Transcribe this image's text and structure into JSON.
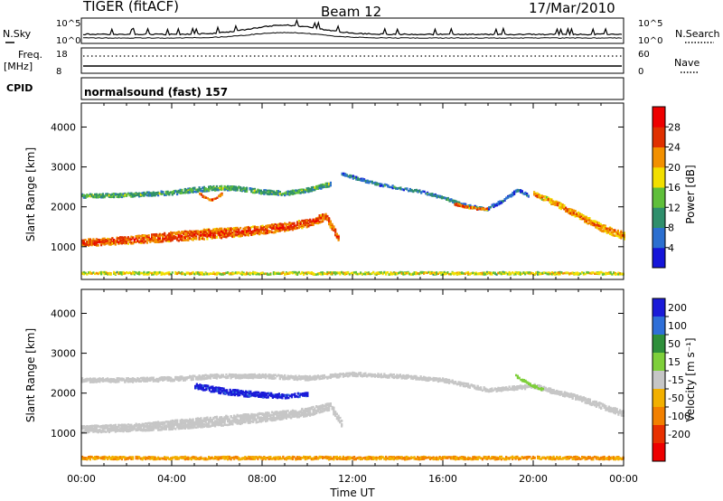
{
  "header": {
    "station": "TIGER (fitACF)",
    "beam": "Beam 12",
    "date": "17/Mar/2010"
  },
  "strip_nsky": {
    "left_label": "N.Sky",
    "right_label": "N.Search",
    "ticks_left": [
      "10^5",
      "10^0"
    ],
    "ticks_right": [
      "10^5",
      "10^0"
    ]
  },
  "strip_freq": {
    "left_label_1": "Freq.",
    "left_label_2": "[MHz]",
    "right_label": "Nave",
    "ticks_left": [
      "18",
      "8"
    ],
    "ticks_right": [
      "60",
      "0"
    ]
  },
  "strip_cpid": {
    "left_label": "CPID",
    "text": "normalsound (fast) 157"
  },
  "chart_data": [
    {
      "type": "heatmap",
      "title": "",
      "xlabel": "Time UT",
      "ylabel": "Slant Range [km]",
      "xlim": [
        "00:00",
        "24:00"
      ],
      "ylim": [
        180,
        4600
      ],
      "x_ticks": [
        "00:00",
        "04:00",
        "08:00",
        "12:00",
        "16:00",
        "20:00",
        "00:00"
      ],
      "y_ticks": [
        1000,
        2000,
        3000,
        4000
      ],
      "colorbar": {
        "label": "Power [dB]",
        "range": [
          0,
          32
        ],
        "ticks": [
          4,
          8,
          12,
          16,
          20,
          24,
          28
        ],
        "colors": [
          "#1515d9",
          "#2b6fd0",
          "#2f8f6c",
          "#5fbf3a",
          "#f2df00",
          "#f29000",
          "#e03000",
          "#ee0000"
        ]
      },
      "bands": [
        {
          "name": "",
          "t": [
            0,
            1,
            2,
            3,
            4,
            5,
            6,
            7,
            8,
            9,
            10,
            10.8,
            11.4
          ],
          "r": [
            1120,
            1150,
            1190,
            1230,
            1280,
            1320,
            1360,
            1400,
            1450,
            1520,
            1620,
            1780,
            1200
          ],
          "w": [
            170,
            170,
            180,
            200,
            230,
            240,
            240,
            220,
            200,
            200,
            190,
            180,
            160
          ],
          "level": 27
        },
        {
          "name": "",
          "t": [
            0,
            2,
            4,
            5,
            6,
            7,
            8,
            9,
            10,
            11
          ],
          "r": [
            2300,
            2320,
            2380,
            2450,
            2500,
            2480,
            2400,
            2360,
            2450,
            2600
          ],
          "w": [
            90,
            90,
            100,
            110,
            110,
            100,
            100,
            100,
            100,
            100
          ],
          "level": 14
        },
        {
          "name": "",
          "t": [
            5.2,
            5.5,
            5.8,
            6.2
          ],
          "r": [
            2350,
            2250,
            2200,
            2350
          ],
          "w": [
            60,
            60,
            60,
            60
          ],
          "level": 26
        },
        {
          "name": "",
          "t": [
            11.5,
            13,
            14,
            15,
            16,
            17,
            18
          ],
          "r": [
            2850,
            2600,
            2500,
            2400,
            2250,
            2050,
            1950
          ],
          "w": [
            70,
            60,
            60,
            60,
            70,
            70,
            60
          ],
          "level": 10
        },
        {
          "name": "",
          "t": [
            16.5,
            17,
            17.5,
            18
          ],
          "r": [
            2100,
            2020,
            1980,
            1980
          ],
          "w": [
            50,
            50,
            50,
            50
          ],
          "level": 26
        },
        {
          "name": "",
          "t": [
            18,
            18.7,
            19.3,
            19.8
          ],
          "r": [
            2000,
            2200,
            2450,
            2300
          ],
          "w": [
            70,
            70,
            70,
            70
          ],
          "level": 8
        },
        {
          "name": "",
          "t": [
            20,
            21,
            22,
            23,
            24
          ],
          "r": [
            2350,
            2100,
            1800,
            1500,
            1300
          ],
          "w": [
            100,
            130,
            150,
            170,
            180
          ],
          "level": 24
        },
        {
          "name": "",
          "t": [
            0,
            3,
            6,
            10,
            12,
            15,
            18,
            21,
            24
          ],
          "r": [
            360,
            360,
            360,
            360,
            360,
            360,
            360,
            360,
            360
          ],
          "w": [
            60,
            60,
            60,
            60,
            60,
            60,
            60,
            60,
            60
          ],
          "level": 20
        }
      ]
    },
    {
      "type": "heatmap",
      "title": "",
      "xlabel": "Time UT",
      "ylabel": "Slant Range [km]",
      "xlim": [
        "00:00",
        "24:00"
      ],
      "ylim": [
        180,
        4600
      ],
      "x_ticks": [
        "00:00",
        "04:00",
        "08:00",
        "12:00",
        "16:00",
        "20:00",
        "00:00"
      ],
      "y_ticks": [
        1000,
        2000,
        3000,
        4000
      ],
      "colorbar": {
        "label": "Velocity [m s⁻¹]",
        "ticks": [
          200,
          100,
          50,
          15,
          -15,
          -50,
          -100,
          -200
        ],
        "colors": [
          "#1b1bd8",
          "#2f6fd8",
          "#2e8f3a",
          "#7ecf3a",
          "#c6c6c6",
          "#f2b000",
          "#f28000",
          "#e83000",
          "#ee0000"
        ]
      },
      "bands": [
        {
          "name": "",
          "t": [
            0,
            2,
            4,
            6,
            8,
            10,
            11,
            11.5
          ],
          "r": [
            1120,
            1150,
            1230,
            1320,
            1420,
            1550,
            1700,
            1250
          ],
          "w": [
            170,
            180,
            220,
            240,
            220,
            200,
            180,
            150
          ],
          "level": "ground"
        },
        {
          "name": "",
          "t": [
            0,
            2,
            4,
            6,
            8,
            10,
            12,
            14,
            16,
            18,
            20,
            22,
            24
          ],
          "r": [
            2350,
            2350,
            2380,
            2450,
            2450,
            2400,
            2500,
            2450,
            2350,
            2100,
            2200,
            1900,
            1500
          ],
          "w": [
            100,
            100,
            100,
            100,
            100,
            100,
            90,
            90,
            90,
            90,
            100,
            120,
            140
          ],
          "level": "ground"
        },
        {
          "name": "",
          "t": [
            5,
            6,
            7,
            8,
            9,
            10
          ],
          "r": [
            2200,
            2100,
            2020,
            1980,
            1950,
            2000
          ],
          "w": [
            120,
            140,
            140,
            120,
            100,
            90
          ],
          "level": "blue"
        },
        {
          "name": "",
          "t": [
            19.2,
            19.8,
            20.4
          ],
          "r": [
            2450,
            2250,
            2100
          ],
          "w": [
            60,
            60,
            60
          ],
          "level": "lightgreen"
        },
        {
          "name": "",
          "t": [
            0,
            3,
            6,
            10,
            14,
            18,
            21,
            24
          ],
          "r": [
            400,
            400,
            400,
            400,
            400,
            400,
            400,
            400
          ],
          "w": [
            70,
            70,
            70,
            70,
            70,
            70,
            70,
            70
          ],
          "level": "orange"
        }
      ]
    }
  ]
}
